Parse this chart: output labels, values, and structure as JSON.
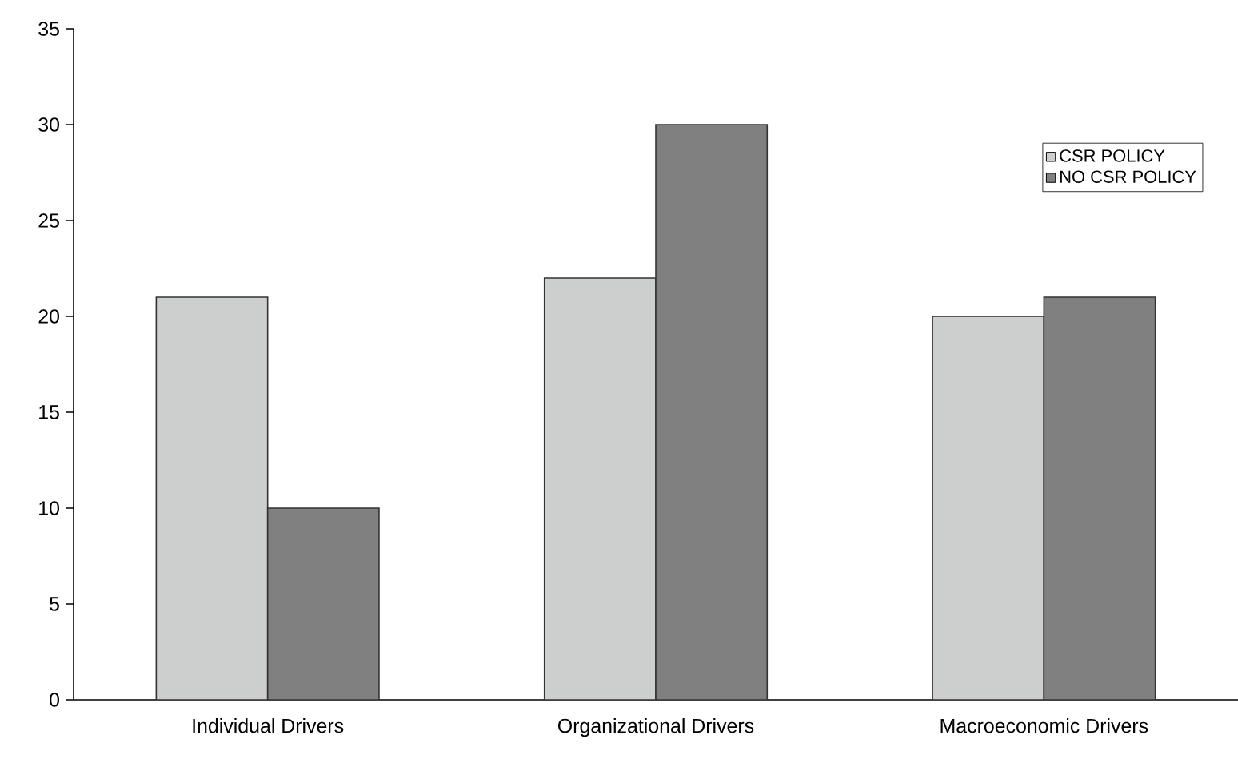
{
  "chart_data": {
    "type": "bar",
    "categories": [
      "Individual Drivers",
      "Organizational Drivers",
      "Macroeconomic Drivers"
    ],
    "series": [
      {
        "name": "CSR POLICY",
        "color": "#cccfcd",
        "values": [
          21,
          22,
          20
        ]
      },
      {
        "name": "NO CSR POLICY",
        "color": "#808080",
        "values": [
          10,
          30,
          21
        ]
      }
    ],
    "ylim": [
      0,
      35
    ],
    "yticks": [
      0,
      5,
      10,
      15,
      20,
      25,
      30,
      35
    ],
    "legend": "top right"
  }
}
